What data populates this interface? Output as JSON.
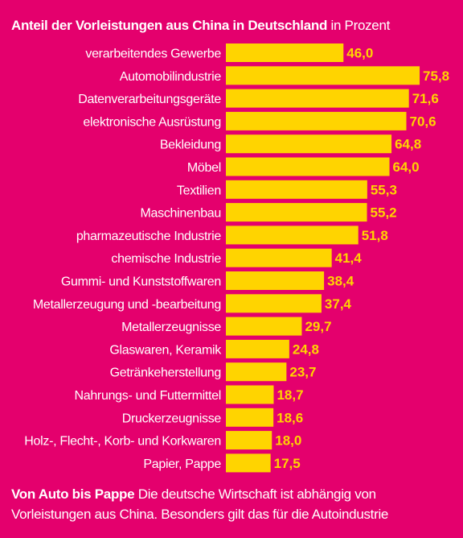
{
  "chart_data": {
    "type": "bar",
    "orientation": "horizontal",
    "title": "Anteil der Vorleistungen aus China in Deutschland",
    "unit": "in Prozent",
    "categories": [
      "verarbeitendes Gewerbe",
      "Automobilindustrie",
      "Datenverarbeitungsgeräte",
      "elektronische Ausrüstung",
      "Bekleidung",
      "Möbel",
      "Textilien",
      "Maschinenbau",
      "pharmazeutische Industrie",
      "chemische Industrie",
      "Gummi- und Kunststoffwaren",
      "Metallerzeugung und -bearbeitung",
      "Metallerzeugnisse",
      "Glaswaren, Keramik",
      "Getränkeherstellung",
      "Nahrungs- und Futtermittel",
      "Druckerzeugnisse",
      "Holz-, Flecht-, Korb- und Korkwaren",
      "Papier, Pappe"
    ],
    "values": [
      46.0,
      75.8,
      71.6,
      70.6,
      64.8,
      64.0,
      55.3,
      55.2,
      51.8,
      41.4,
      38.4,
      37.4,
      29.7,
      24.8,
      23.7,
      18.7,
      18.6,
      18.0,
      17.5
    ],
    "value_labels": [
      "46,0",
      "75,8",
      "71,6",
      "70,6",
      "64,8",
      "64,0",
      "55,3",
      "55,2",
      "51,8",
      "41,4",
      "38,4",
      "37,4",
      "29,7",
      "24,8",
      "23,7",
      "18,7",
      "18,6",
      "18,0",
      "17,5"
    ],
    "bar_color": "#FFD400",
    "background_color": "#E4006D",
    "grid": false,
    "legend": "none"
  },
  "caption": {
    "headline": "Von Auto bis Pappe",
    "text": "Die deutsche Wirtschaft ist abhängig von Vorleistungen aus China. Besonders gilt das für die Autoindustrie"
  }
}
